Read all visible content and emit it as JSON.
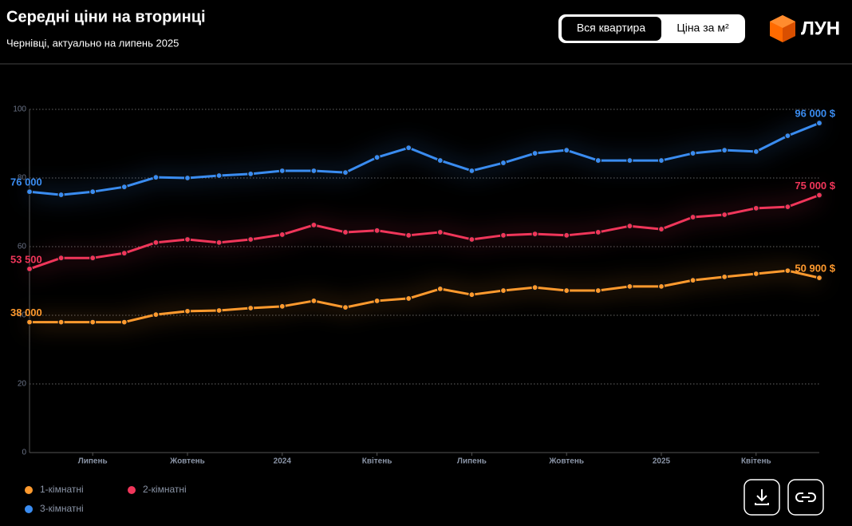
{
  "header": {
    "title": "Середні ціни на вторинці",
    "subtitle": "Чернівці, актуально на липень 2025"
  },
  "tabs": [
    "Вся квартира",
    "Ціна за м²"
  ],
  "logo": "ЛУН",
  "chart_data": {
    "type": "line",
    "categories": [
      null,
      null,
      "Липень",
      null,
      null,
      "Жовтень",
      null,
      null,
      "2024",
      null,
      null,
      "Квітень",
      null,
      null,
      "Липень",
      null,
      null,
      "Жовтень",
      null,
      null,
      "2025",
      null,
      null,
      "Квітень",
      null,
      null
    ],
    "series": [
      {
        "name": "1-кімнатні",
        "color": "#ff9a2e",
        "values": [
          38,
          38,
          38,
          38,
          40.2,
          41.2,
          41.4,
          42.1,
          42.6,
          44.2,
          42.3,
          44.2,
          44.9,
          47.7,
          46,
          47.2,
          48.1,
          47.2,
          47.2,
          48.4,
          48.4,
          50.2,
          51.2,
          52.1,
          53,
          50.9
        ],
        "value_labels": [
          "38 000",
          null,
          null,
          null,
          null,
          null,
          null,
          null,
          null,
          null,
          null,
          null,
          null,
          null,
          null,
          null,
          null,
          null,
          null,
          null,
          null,
          null,
          null,
          null,
          null,
          "50 900 $"
        ]
      },
      {
        "name": "2-кімнатні",
        "color": "#f0365a",
        "values": [
          53.5,
          56.7,
          56.7,
          58.1,
          61.2,
          62.1,
          61.2,
          62.1,
          63.5,
          66.3,
          64.2,
          64.7,
          63.3,
          64.2,
          62.1,
          63.3,
          63.7,
          63.3,
          64.2,
          66,
          65.1,
          68.6,
          69.3,
          71.2,
          71.6,
          75
        ],
        "value_labels": [
          "53 500",
          null,
          null,
          null,
          null,
          null,
          null,
          null,
          null,
          null,
          null,
          null,
          null,
          null,
          null,
          null,
          null,
          null,
          null,
          null,
          null,
          null,
          null,
          null,
          null,
          "75 000 $"
        ]
      },
      {
        "name": "3-кімнатні",
        "color": "#3a8cf0",
        "values": [
          76,
          75.1,
          76,
          77.4,
          80.2,
          80,
          80.7,
          81.2,
          82.1,
          82.1,
          81.6,
          86,
          88.8,
          85.1,
          82.1,
          84.4,
          87.2,
          88.1,
          85.1,
          85.1,
          85.1,
          87.2,
          88.1,
          87.7,
          92.3,
          96
        ],
        "value_labels": [
          "76 000",
          null,
          null,
          null,
          null,
          null,
          null,
          null,
          null,
          null,
          null,
          null,
          null,
          null,
          null,
          null,
          null,
          null,
          null,
          null,
          null,
          null,
          null,
          null,
          null,
          "96 000 $"
        ]
      }
    ],
    "ylim": [
      0,
      100
    ],
    "yticks": [
      0,
      20,
      40,
      60,
      80,
      100
    ],
    "grid": true
  }
}
